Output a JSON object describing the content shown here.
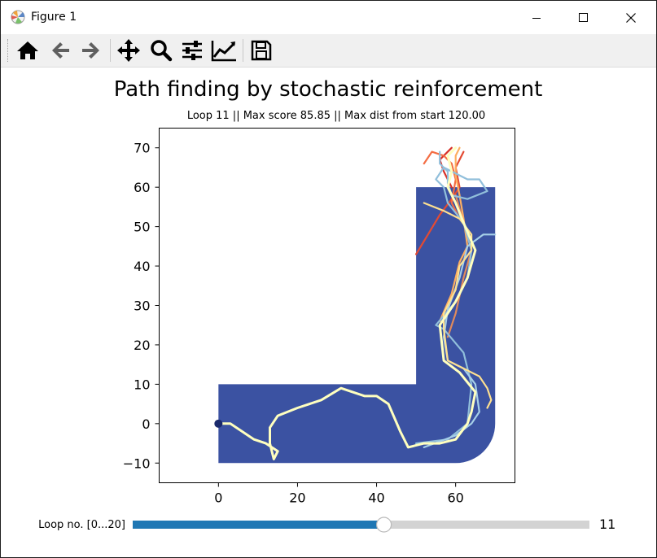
{
  "window": {
    "title": "Figure 1"
  },
  "toolbar": {
    "buttons": [
      "home-icon",
      "back-icon",
      "forward-icon",
      "pan-icon",
      "zoom-icon",
      "configure-subplots-icon",
      "edit-axis-icon",
      "save-icon"
    ]
  },
  "figure": {
    "title": "Path finding by stochastic reinforcement",
    "subtitle": "Loop 11 || Max score 85.85 || Max dist from start 120.00"
  },
  "slider": {
    "label": "Loop no. [0...20]",
    "min": 0,
    "max": 20,
    "value": 11,
    "value_text": "11"
  },
  "colors": {
    "region": "#3b52a2",
    "slider_fill": "#1f77b4",
    "slider_track": "#d3d3d3",
    "start_marker": "#1a2a6c"
  },
  "chart_data": {
    "type": "line",
    "title": "Path finding by stochastic reinforcement",
    "subtitle": "Loop 11 || Max score 85.85 || Max dist from start 120.00",
    "xlim": [
      -15,
      75
    ],
    "ylim": [
      -15,
      75
    ],
    "xticks": [
      0,
      20,
      40,
      60
    ],
    "xtick_labels": [
      "0",
      "20",
      "40",
      "60"
    ],
    "yticks": [
      -10,
      0,
      10,
      20,
      30,
      40,
      50,
      60,
      70
    ],
    "ytick_labels": [
      "−10",
      "0",
      "10",
      "20",
      "30",
      "40",
      "50",
      "60",
      "70"
    ],
    "grid": false,
    "allowed_region": [
      [
        0,
        10
      ],
      [
        50,
        10
      ],
      [
        50,
        60
      ],
      [
        70,
        60
      ],
      [
        70,
        0
      ],
      [
        70,
        -10
      ],
      [
        60,
        -10
      ],
      [
        0,
        -10
      ]
    ],
    "start_point": [
      0,
      0
    ],
    "series": [
      {
        "color": "#d73027",
        "values": [
          [
            59,
            60
          ],
          [
            57,
            64
          ],
          [
            56,
            67
          ],
          [
            59,
            70
          ]
        ]
      },
      {
        "color": "#e34a33",
        "values": [
          [
            50,
            43
          ],
          [
            53,
            48
          ],
          [
            56,
            53
          ],
          [
            59,
            57
          ],
          [
            61,
            60
          ],
          [
            60,
            65
          ],
          [
            62,
            69
          ]
        ]
      },
      {
        "color": "#f46d43",
        "values": [
          [
            52,
            66
          ],
          [
            54,
            69
          ],
          [
            57,
            68
          ],
          [
            59,
            66
          ],
          [
            60,
            62
          ],
          [
            59,
            56
          ],
          [
            61,
            52
          ]
        ]
      },
      {
        "color": "#fdae61",
        "values": [
          [
            56,
            26
          ],
          [
            59,
            33
          ],
          [
            61,
            41
          ],
          [
            63,
            45
          ],
          [
            62,
            52
          ],
          [
            61,
            58
          ],
          [
            60,
            63
          ],
          [
            60,
            68
          ],
          [
            61,
            70
          ]
        ]
      },
      {
        "color": "#e08a5c",
        "values": [
          [
            58,
            22
          ],
          [
            60,
            28
          ],
          [
            62,
            37
          ],
          [
            64,
            44
          ],
          [
            62,
            51
          ],
          [
            60,
            58
          ]
        ]
      },
      {
        "color": "#91bfdb",
        "values": [
          [
            50,
            -5
          ],
          [
            58,
            -4
          ],
          [
            63,
            0
          ],
          [
            64,
            10
          ],
          [
            62,
            18
          ],
          [
            57,
            24
          ],
          [
            55,
            25
          ],
          [
            60,
            31
          ],
          [
            63,
            37
          ],
          [
            64,
            44
          ],
          [
            62,
            51
          ],
          [
            58,
            56
          ],
          [
            57,
            60
          ],
          [
            55,
            62
          ],
          [
            57,
            65
          ],
          [
            63,
            62
          ],
          [
            66,
            62
          ],
          [
            68,
            59
          ],
          [
            63,
            57
          ],
          [
            59,
            58
          ],
          [
            58,
            61
          ],
          [
            58,
            64
          ],
          [
            56,
            66
          ],
          [
            56,
            69
          ]
        ]
      },
      {
        "color": "#a6cfe8",
        "values": [
          [
            52,
            -6
          ],
          [
            60,
            -3
          ],
          [
            64,
            0
          ],
          [
            66,
            3
          ],
          [
            65,
            10
          ],
          [
            62,
            14
          ],
          [
            58,
            16
          ],
          [
            57,
            22
          ],
          [
            58,
            29
          ],
          [
            61,
            37
          ],
          [
            63,
            45
          ],
          [
            67,
            48
          ],
          [
            70,
            48
          ]
        ]
      },
      {
        "color": "#fee090",
        "values": [
          [
            52,
            56
          ],
          [
            57,
            54
          ],
          [
            61,
            52
          ],
          [
            64,
            48
          ],
          [
            64,
            44
          ],
          [
            61,
            40
          ],
          [
            60,
            34
          ],
          [
            57,
            28
          ],
          [
            57,
            24
          ],
          [
            58,
            16
          ],
          [
            62,
            14
          ],
          [
            66,
            12
          ],
          [
            68,
            9
          ],
          [
            69,
            6
          ],
          [
            68,
            4
          ]
        ]
      },
      {
        "color": "#ffffbf",
        "values": [
          [
            0,
            0
          ],
          [
            3,
            0
          ],
          [
            6,
            -2
          ],
          [
            9,
            -4
          ],
          [
            12,
            -5
          ],
          [
            15,
            -7
          ],
          [
            14,
            -9
          ],
          [
            13,
            -5
          ],
          [
            13,
            -1
          ],
          [
            15,
            2
          ],
          [
            20,
            4
          ],
          [
            26,
            6
          ],
          [
            31,
            9
          ],
          [
            34,
            8
          ],
          [
            37,
            7
          ],
          [
            40,
            7
          ],
          [
            43,
            5
          ],
          [
            46,
            -2
          ],
          [
            48,
            -6
          ],
          [
            52,
            -5
          ],
          [
            56,
            -5
          ],
          [
            60,
            -4
          ],
          [
            63,
            0
          ],
          [
            64,
            3
          ],
          [
            65,
            8
          ],
          [
            61,
            13
          ],
          [
            57,
            16
          ],
          [
            56,
            25
          ],
          [
            60,
            31
          ],
          [
            63,
            37
          ],
          [
            65,
            44
          ],
          [
            62,
            51
          ],
          [
            60,
            56
          ],
          [
            58,
            60
          ],
          [
            59,
            64
          ],
          [
            58,
            68
          ],
          [
            60,
            70
          ]
        ]
      }
    ]
  }
}
